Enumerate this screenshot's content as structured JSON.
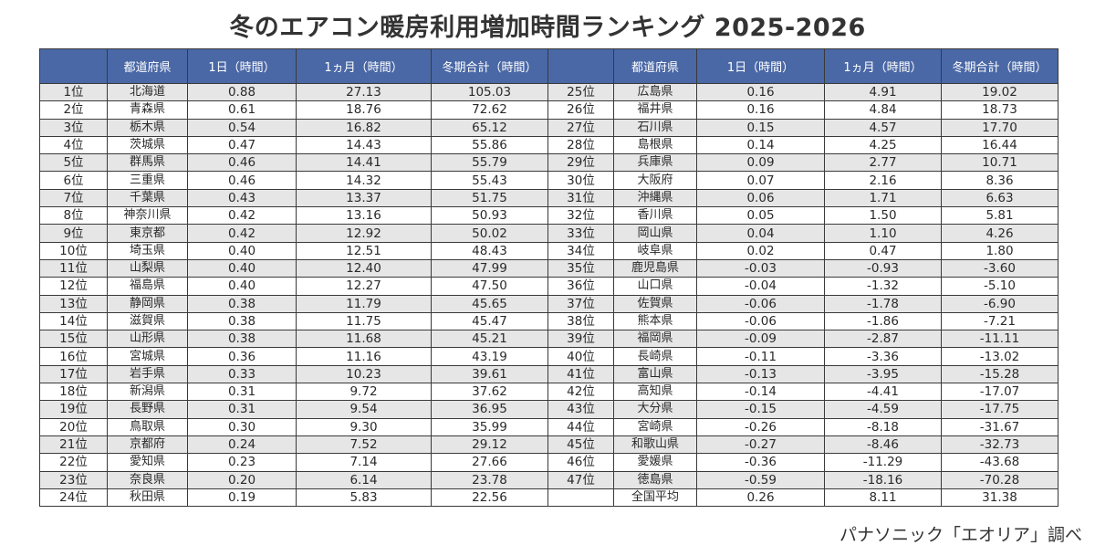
{
  "title": "冬のエアコン暖房利用増加時間ランキング 2025-2026",
  "headers": [
    "",
    "都道府県",
    "1日（時間）",
    "1ヵ月（時間）",
    "冬期合計（時間）"
  ],
  "left_rows": [
    [
      "1位",
      "北海道",
      "0.88",
      "27.13",
      "105.03"
    ],
    [
      "2位",
      "青森県",
      "0.61",
      "18.76",
      "72.62"
    ],
    [
      "3位",
      "栃木県",
      "0.54",
      "16.82",
      "65.12"
    ],
    [
      "4位",
      "茨城県",
      "0.47",
      "14.43",
      "55.86"
    ],
    [
      "5位",
      "群馬県",
      "0.46",
      "14.41",
      "55.79"
    ],
    [
      "6位",
      "三重県",
      "0.46",
      "14.32",
      "55.43"
    ],
    [
      "7位",
      "千葉県",
      "0.43",
      "13.37",
      "51.75"
    ],
    [
      "8位",
      "神奈川県",
      "0.42",
      "13.16",
      "50.93"
    ],
    [
      "9位",
      "東京都",
      "0.42",
      "12.92",
      "50.02"
    ],
    [
      "10位",
      "埼玉県",
      "0.40",
      "12.51",
      "48.43"
    ],
    [
      "11位",
      "山梨県",
      "0.40",
      "12.40",
      "47.99"
    ],
    [
      "12位",
      "福島県",
      "0.40",
      "12.27",
      "47.50"
    ],
    [
      "13位",
      "静岡県",
      "0.38",
      "11.79",
      "45.65"
    ],
    [
      "14位",
      "滋賀県",
      "0.38",
      "11.75",
      "45.47"
    ],
    [
      "15位",
      "山形県",
      "0.38",
      "11.68",
      "45.21"
    ],
    [
      "16位",
      "宮城県",
      "0.36",
      "11.16",
      "43.19"
    ],
    [
      "17位",
      "岩手県",
      "0.33",
      "10.23",
      "39.61"
    ],
    [
      "18位",
      "新潟県",
      "0.31",
      "9.72",
      "37.62"
    ],
    [
      "19位",
      "長野県",
      "0.31",
      "9.54",
      "36.95"
    ],
    [
      "20位",
      "鳥取県",
      "0.30",
      "9.30",
      "35.99"
    ],
    [
      "21位",
      "京都府",
      "0.24",
      "7.52",
      "29.12"
    ],
    [
      "22位",
      "愛知県",
      "0.23",
      "7.14",
      "27.66"
    ],
    [
      "23位",
      "奈良県",
      "0.20",
      "6.14",
      "23.78"
    ],
    [
      "24位",
      "秋田県",
      "0.19",
      "5.83",
      "22.56"
    ]
  ],
  "right_rows": [
    [
      "25位",
      "広島県",
      "0.16",
      "4.91",
      "19.02"
    ],
    [
      "26位",
      "福井県",
      "0.16",
      "4.84",
      "18.73"
    ],
    [
      "27位",
      "石川県",
      "0.15",
      "4.57",
      "17.70"
    ],
    [
      "28位",
      "島根県",
      "0.14",
      "4.25",
      "16.44"
    ],
    [
      "29位",
      "兵庫県",
      "0.09",
      "2.77",
      "10.71"
    ],
    [
      "30位",
      "大阪府",
      "0.07",
      "2.16",
      "8.36"
    ],
    [
      "31位",
      "沖縄県",
      "0.06",
      "1.71",
      "6.63"
    ],
    [
      "32位",
      "香川県",
      "0.05",
      "1.50",
      "5.81"
    ],
    [
      "33位",
      "岡山県",
      "0.04",
      "1.10",
      "4.26"
    ],
    [
      "34位",
      "岐阜県",
      "0.02",
      "0.47",
      "1.80"
    ],
    [
      "35位",
      "鹿児島県",
      "-0.03",
      "-0.93",
      "-3.60"
    ],
    [
      "36位",
      "山口県",
      "-0.04",
      "-1.32",
      "-5.10"
    ],
    [
      "37位",
      "佐賀県",
      "-0.06",
      "-1.78",
      "-6.90"
    ],
    [
      "38位",
      "熊本県",
      "-0.06",
      "-1.86",
      "-7.21"
    ],
    [
      "39位",
      "福岡県",
      "-0.09",
      "-2.87",
      "-11.11"
    ],
    [
      "40位",
      "長崎県",
      "-0.11",
      "-3.36",
      "-13.02"
    ],
    [
      "41位",
      "富山県",
      "-0.13",
      "-3.95",
      "-15.28"
    ],
    [
      "42位",
      "高知県",
      "-0.14",
      "-4.41",
      "-17.07"
    ],
    [
      "43位",
      "大分県",
      "-0.15",
      "-4.59",
      "-17.75"
    ],
    [
      "44位",
      "宮崎県",
      "-0.26",
      "-8.18",
      "-31.67"
    ],
    [
      "45位",
      "和歌山県",
      "-0.27",
      "-8.46",
      "-32.73"
    ],
    [
      "46位",
      "愛媛県",
      "-0.36",
      "-11.29",
      "-43.68"
    ],
    [
      "47位",
      "徳島県",
      "-0.59",
      "-18.16",
      "-70.28"
    ],
    [
      "",
      "全国平均",
      "0.26",
      "8.11",
      "31.38"
    ]
  ],
  "source": "パナソニック「エオリア」調べ",
  "colors": {
    "header_bg": "#4a68a6",
    "stripe": "#e6e6e6"
  }
}
